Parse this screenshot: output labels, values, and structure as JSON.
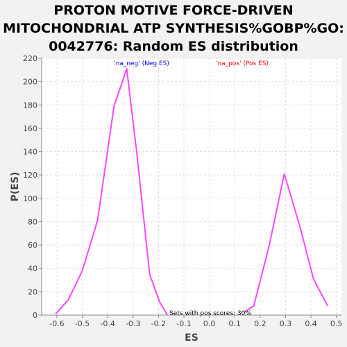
{
  "chart_data": {
    "type": "line",
    "title_lines": [
      "PROTON MOTIVE FORCE-DRIVEN",
      "MITOCHONDRIAL ATP SYNTHESIS%GOBP%GO:",
      "0042776: Random ES distribution"
    ],
    "xlabel": "ES",
    "ylabel": "P(ES)",
    "xlim": [
      -0.66,
      0.52
    ],
    "ylim": [
      0,
      220
    ],
    "x_ticks": [
      "-0.6",
      "-0.5",
      "-0.4",
      "-0.3",
      "-0.2",
      "-0.1",
      "0.0",
      "0.1",
      "0.2",
      "0.3",
      "0.4",
      "0.5"
    ],
    "y_ticks": [
      "0",
      "20",
      "40",
      "60",
      "80",
      "100",
      "120",
      "140",
      "160",
      "180",
      "200",
      "220"
    ],
    "grid": true,
    "legend": [
      {
        "text": "'na_neg' (Neg ES)",
        "color": "#0000ff"
      },
      {
        "text": "'na_pos' (Pos ES)",
        "color": "#ff0000"
      }
    ],
    "annotation": "Sets with pos scores: 30%",
    "series": [
      {
        "color": "#ff44ff",
        "x": [
          -0.605,
          -0.555,
          -0.5,
          -0.44,
          -0.375,
          -0.325,
          -0.285,
          -0.235,
          -0.195,
          -0.165
        ],
        "y": [
          1,
          13,
          38,
          81,
          179,
          211,
          138,
          35,
          11,
          0
        ]
      },
      {
        "color": "#ff44ff",
        "x": [
          0.135,
          0.175,
          0.235,
          0.295,
          0.355,
          0.41,
          0.465
        ],
        "y": [
          2,
          8,
          59,
          121,
          77,
          31,
          8
        ]
      }
    ]
  }
}
